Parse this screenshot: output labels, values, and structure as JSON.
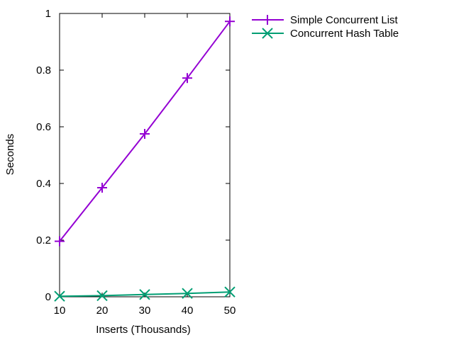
{
  "chart_data": {
    "type": "line",
    "title": "",
    "xlabel": "Inserts (Thousands)",
    "ylabel": "Seconds",
    "x": [
      10,
      20,
      30,
      40,
      50
    ],
    "xlim": [
      10,
      50
    ],
    "ylim": [
      0,
      1
    ],
    "xticks": [
      "10",
      "20",
      "30",
      "40",
      "50"
    ],
    "yticks": [
      "0",
      "0.2",
      "0.4",
      "0.6",
      "0.8",
      "1"
    ],
    "grid": false,
    "legend_position": "outside right, top",
    "series": [
      {
        "name": "Simple Concurrent List",
        "values": [
          0.196,
          0.385,
          0.575,
          0.772,
          0.972
        ],
        "color": "#9400d3",
        "marker": "plus"
      },
      {
        "name": "Concurrent Hash Table",
        "values": [
          0.002,
          0.004,
          0.008,
          0.012,
          0.017
        ],
        "color": "#009e73",
        "marker": "cross"
      }
    ]
  }
}
